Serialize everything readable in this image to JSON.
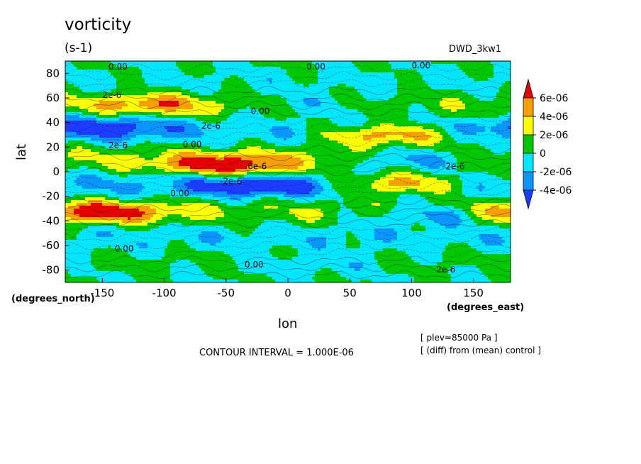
{
  "chart_data": {
    "type": "heatmap",
    "title": "vorticity",
    "units": "(s-1)",
    "dataset": "DWD_3kw1",
    "xlabel": "lon",
    "ylabel": "lat",
    "x_units_label": "(degrees_east)",
    "y_units_label": "(degrees_north)",
    "xlim": [
      -180,
      180
    ],
    "ylim": [
      -90,
      90
    ],
    "x_ticks": [
      -150,
      -100,
      -50,
      0,
      50,
      100,
      150
    ],
    "y_ticks": [
      -80,
      -60,
      -40,
      -20,
      0,
      20,
      40,
      60,
      80
    ],
    "contour_interval_text": "CONTOUR INTERVAL = 1.000E-06",
    "annotations": [
      "[ plev=85000 Pa ]",
      "[ (diff) from (mean) control ]"
    ],
    "contour_labels": [
      "0.00",
      "2e-6",
      "-2e-6",
      "-6e-6"
    ],
    "colorbar": {
      "levels": [
        "6e-06",
        "4e-06",
        "2e-06",
        "0",
        "-2e-06",
        "-4e-06"
      ],
      "colors": [
        "#e60000",
        "#f5a000",
        "#ffff00",
        "#00c800",
        "#00e6ff",
        "#0a96ff",
        "#1e3cff"
      ]
    },
    "features": [
      {
        "lon": -50,
        "lat": 5,
        "value": 6e-06
      },
      {
        "lon": 80,
        "lat": 30,
        "value": 6e-06
      },
      {
        "lon": -155,
        "lat": -33,
        "value": 6e-06
      },
      {
        "lon": 90,
        "lat": -10,
        "value": 6e-06
      },
      {
        "lon": -110,
        "lat": 55,
        "value": 4e-06
      },
      {
        "lon": -150,
        "lat": 37,
        "value": -4e-06
      },
      {
        "lon": 100,
        "lat": 10,
        "value": -4e-06
      },
      {
        "lon": -20,
        "lat": -12,
        "value": -4e-06
      },
      {
        "lon": 120,
        "lat": -35,
        "value": -4e-06
      },
      {
        "lon": 20,
        "lat": 55,
        "value": -2e-06
      },
      {
        "lon": 20,
        "lat": -75,
        "value": -2e-06
      }
    ]
  }
}
